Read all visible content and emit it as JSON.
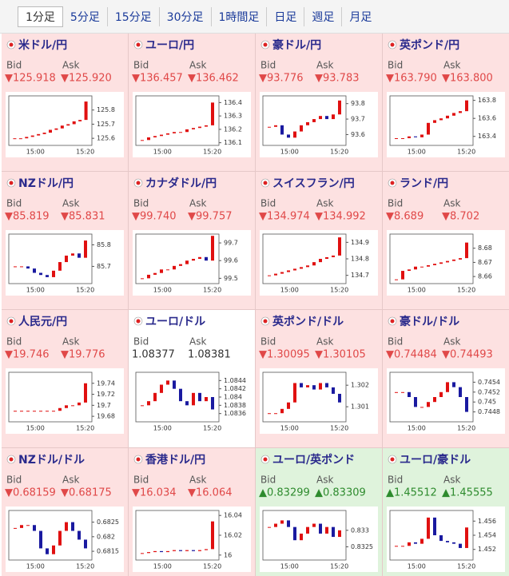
{
  "tabs": [
    "1分足",
    "5分足",
    "15分足",
    "30分足",
    "1時間足",
    "日足",
    "週足",
    "月足"
  ],
  "candle_colors": {
    "up": "#e01010",
    "down": "#1a1aa0"
  },
  "panels": [
    {
      "pair": "米ドル/円",
      "background": "#fde1e1",
      "value_color": "#e04848",
      "bid_label": "Bid",
      "ask_label": "Ask",
      "bid": "▼125.918",
      "ask": "▼125.920",
      "chart": {
        "type": "candlestick",
        "values": [
          125.6,
          125.6,
          125.61,
          125.62,
          125.63,
          125.64,
          125.66,
          125.67,
          125.69,
          125.7,
          125.72,
          125.73,
          125.86
        ],
        "ylim": [
          125.55,
          125.9
        ],
        "yticks": [
          125.8,
          125.7,
          125.6
        ],
        "xticks": [
          "15:00",
          "15:20"
        ]
      }
    },
    {
      "pair": "ユーロ/円",
      "background": "#fde1e1",
      "value_color": "#e04848",
      "bid_label": "Bid",
      "ask_label": "Ask",
      "bid": "▼136.457",
      "ask": "▼136.462",
      "chart": {
        "type": "candlestick",
        "values": [
          136.12,
          136.14,
          136.15,
          136.16,
          136.17,
          136.18,
          136.18,
          136.2,
          136.21,
          136.22,
          136.23,
          136.4
        ],
        "ylim": [
          136.08,
          136.45
        ],
        "yticks": [
          136.4,
          136.3,
          136.2,
          136.1
        ],
        "xticks": [
          "15:00",
          "15:20"
        ]
      }
    },
    {
      "pair": "豪ドル/円",
      "background": "#fde1e1",
      "value_color": "#e04848",
      "bid_label": "Bid",
      "ask_label": "Ask",
      "bid": "▼93.776",
      "ask": "▼93.783",
      "chart": {
        "type": "candlestick",
        "values": [
          93.65,
          93.66,
          93.6,
          93.58,
          93.62,
          93.66,
          93.68,
          93.7,
          93.72,
          93.7,
          93.73,
          93.82
        ],
        "ylim": [
          93.53,
          93.85
        ],
        "yticks": [
          93.8,
          93.7,
          93.6
        ],
        "xticks": [
          "15:00",
          "15:20"
        ]
      }
    },
    {
      "pair": "英ポンド/円",
      "background": "#fde1e1",
      "value_color": "#e04848",
      "bid_label": "Bid",
      "ask_label": "Ask",
      "bid": "▼163.790",
      "ask": "▼163.800",
      "chart": {
        "type": "candlestick",
        "values": [
          163.38,
          163.38,
          163.4,
          163.39,
          163.42,
          163.55,
          163.58,
          163.6,
          163.63,
          163.66,
          163.68,
          163.8
        ],
        "ylim": [
          163.3,
          163.85
        ],
        "yticks": [
          163.8,
          163.6,
          163.4
        ],
        "xticks": [
          "15:00",
          "15:20"
        ]
      }
    },
    {
      "pair": "NZドル/円",
      "background": "#fde1e1",
      "value_color": "#e04848",
      "bid_label": "Bid",
      "ask_label": "Ask",
      "bid": "▼85.819",
      "ask": "▼85.831",
      "chart": {
        "type": "candlestick",
        "values": [
          85.7,
          85.7,
          85.69,
          85.67,
          85.66,
          85.65,
          85.68,
          85.72,
          85.75,
          85.76,
          85.74,
          85.82
        ],
        "ylim": [
          85.62,
          85.85
        ],
        "yticks": [
          85.8,
          85.7
        ],
        "xticks": [
          "15:00",
          "15:20"
        ]
      }
    },
    {
      "pair": "カナダドル/円",
      "background": "#fde1e1",
      "value_color": "#e04848",
      "bid_label": "Bid",
      "ask_label": "Ask",
      "bid": "▼99.740",
      "ask": "▼99.757",
      "chart": {
        "type": "candlestick",
        "values": [
          99.5,
          99.52,
          99.53,
          99.55,
          99.55,
          99.57,
          99.58,
          99.6,
          99.61,
          99.62,
          99.6,
          99.74
        ],
        "ylim": [
          99.47,
          99.75
        ],
        "yticks": [
          99.7,
          99.6,
          99.5
        ],
        "xticks": [
          "15:00",
          "15:20"
        ]
      }
    },
    {
      "pair": "スイスフラン/円",
      "background": "#fde1e1",
      "value_color": "#e04848",
      "bid_label": "Bid",
      "ask_label": "Ask",
      "bid": "▼134.974",
      "ask": "▼134.992",
      "chart": {
        "type": "candlestick",
        "values": [
          134.7,
          134.71,
          134.72,
          134.73,
          134.74,
          134.75,
          134.76,
          134.78,
          134.8,
          134.81,
          134.82,
          134.93
        ],
        "ylim": [
          134.65,
          134.95
        ],
        "yticks": [
          134.9,
          134.8,
          134.7
        ],
        "xticks": [
          "15:00",
          "15:20"
        ]
      }
    },
    {
      "pair": "ランド/円",
      "background": "#fde1e1",
      "value_color": "#e04848",
      "bid_label": "Bid",
      "ask_label": "Ask",
      "bid": "▼8.689",
      "ask": "▼8.702",
      "chart": {
        "type": "candlestick",
        "values": [
          8.658,
          8.664,
          8.665,
          8.667,
          8.667,
          8.668,
          8.669,
          8.67,
          8.671,
          8.672,
          8.673,
          8.684
        ],
        "ylim": [
          8.655,
          8.69
        ],
        "yticks": [
          8.68,
          8.67,
          8.66
        ],
        "xticks": [
          "15:00",
          "15:20"
        ]
      }
    },
    {
      "pair": "人民元/円",
      "background": "#fde1e1",
      "value_color": "#e04848",
      "bid_label": "Bid",
      "ask_label": "Ask",
      "bid": "▼19.746",
      "ask": "▼19.776",
      "chart": {
        "type": "candlestick",
        "values": [
          19.69,
          19.69,
          19.69,
          19.69,
          19.69,
          19.69,
          19.69,
          19.695,
          19.7,
          19.7,
          19.705,
          19.74
        ],
        "ylim": [
          19.67,
          19.76
        ],
        "yticks": [
          19.74,
          19.72,
          19.7,
          19.68
        ],
        "xticks": [
          "15:00",
          "15:20"
        ]
      }
    },
    {
      "pair": "ユーロ/ドル",
      "background": "#ffffff",
      "value_color": "#333333",
      "bid_label": "Bid",
      "ask_label": "Ask",
      "bid": "1.08377",
      "ask": "1.08381",
      "chart": {
        "type": "candlestick",
        "values": [
          1.0838,
          1.0839,
          1.0841,
          1.0843,
          1.0844,
          1.0842,
          1.0839,
          1.0838,
          1.0841,
          1.0839,
          1.084,
          1.0837
        ],
        "ylim": [
          1.0834,
          1.0846
        ],
        "yticks": [
          1.0844,
          1.0842,
          1.084,
          1.0838,
          1.0836
        ],
        "xticks": [
          "15:00",
          "15:20"
        ]
      }
    },
    {
      "pair": "英ポンド/ドル",
      "background": "#fde1e1",
      "value_color": "#e04848",
      "bid_label": "Bid",
      "ask_label": "Ask",
      "bid": "▼1.30095",
      "ask": "▼1.30105",
      "chart": {
        "type": "candlestick",
        "values": [
          1.3007,
          1.3007,
          1.3009,
          1.3012,
          1.3021,
          1.3019,
          1.302,
          1.3018,
          1.3021,
          1.3019,
          1.3016,
          1.3012
        ],
        "ylim": [
          1.3003,
          1.3026
        ],
        "yticks": [
          1.302,
          1.301
        ],
        "xticks": [
          "15:00",
          "15:20"
        ]
      }
    },
    {
      "pair": "豪ドル/ドル",
      "background": "#fde1e1",
      "value_color": "#e04848",
      "bid_label": "Bid",
      "ask_label": "Ask",
      "bid": "▼0.74484",
      "ask": "▼0.74493",
      "chart": {
        "type": "candlestick",
        "values": [
          0.7452,
          0.7452,
          0.7451,
          0.7449,
          0.7449,
          0.745,
          0.7451,
          0.7452,
          0.7454,
          0.7453,
          0.7451,
          0.7448
        ],
        "ylim": [
          0.7446,
          0.7456
        ],
        "yticks": [
          0.7454,
          0.7452,
          0.745,
          0.7448
        ],
        "xticks": [
          "15:00",
          "15:20"
        ]
      }
    },
    {
      "pair": "NZドル/ドル",
      "background": "#fde1e1",
      "value_color": "#e04848",
      "bid_label": "Bid",
      "ask_label": "Ask",
      "bid": "▼0.68159",
      "ask": "▼0.68175",
      "chart": {
        "type": "candlestick",
        "values": [
          0.6823,
          0.6824,
          0.6824,
          0.6822,
          0.6816,
          0.6814,
          0.6817,
          0.6822,
          0.6825,
          0.6822,
          0.6819,
          0.6816
        ],
        "ylim": [
          0.6812,
          0.6829
        ],
        "yticks": [
          0.6825,
          0.682,
          0.6815
        ],
        "xticks": [
          "15:00",
          "15:20"
        ]
      }
    },
    {
      "pair": "香港ドル/円",
      "background": "#fde1e1",
      "value_color": "#e04848",
      "bid_label": "Bid",
      "ask_label": "Ask",
      "bid": "▼16.034",
      "ask": "▼16.064",
      "chart": {
        "type": "candlestick",
        "values": [
          16.002,
          16.003,
          16.004,
          16.003,
          16.004,
          16.005,
          16.004,
          16.005,
          16.004,
          16.005,
          16.006,
          16.034
        ],
        "ylim": [
          15.995,
          16.045
        ],
        "yticks": [
          16.04,
          16.02,
          16
        ],
        "xticks": [
          "15:00",
          "15:20"
        ]
      }
    },
    {
      "pair": "ユーロ/英ポンド",
      "background": "#dff3dc",
      "value_color": "#2e8b2e",
      "bid_label": "Bid",
      "ask_label": "Ask",
      "bid": "▲0.83299",
      "ask": "▲0.83309",
      "chart": {
        "type": "candlestick",
        "values": [
          0.8331,
          0.8332,
          0.8333,
          0.8331,
          0.8327,
          0.8329,
          0.8331,
          0.8332,
          0.8329,
          0.8331,
          0.8328,
          0.833
        ],
        "ylim": [
          0.8321,
          0.8336
        ],
        "yticks": [
          0.833,
          0.8325
        ],
        "xticks": [
          "15:00",
          "15:20"
        ]
      }
    },
    {
      "pair": "ユーロ/豪ドル",
      "background": "#dff3dc",
      "value_color": "#2e8b2e",
      "bid_label": "Bid",
      "ask_label": "Ask",
      "bid": "▲1.45512",
      "ask": "▲1.45555",
      "chart": {
        "type": "candlestick",
        "values": [
          1.4525,
          1.4525,
          1.453,
          1.4528,
          1.4535,
          1.4565,
          1.454,
          1.4532,
          1.453,
          1.4528,
          1.4522,
          1.4551
        ],
        "ylim": [
          1.4505,
          1.4575
        ],
        "yticks": [
          1.456,
          1.454,
          1.452
        ],
        "xticks": [
          "15:00",
          "15:20"
        ]
      }
    }
  ]
}
